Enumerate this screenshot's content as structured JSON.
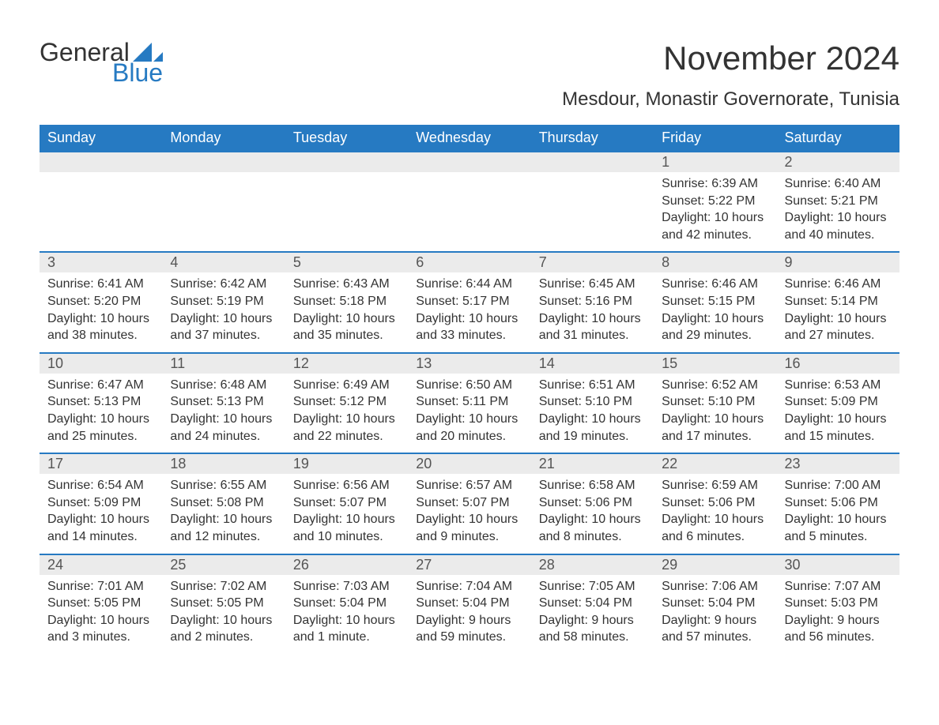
{
  "logo": {
    "word1": "General",
    "word2": "Blue",
    "accent_color": "#267ac2"
  },
  "title": "November 2024",
  "subtitle": "Mesdour, Monastir Governorate, Tunisia",
  "colors": {
    "header_bg": "#267ac2",
    "header_text": "#ffffff",
    "daynum_bg": "#ebebeb",
    "rule": "#267ac2",
    "body_text": "#333333"
  },
  "fontsize": {
    "title": 42,
    "subtitle": 24,
    "dayheader": 18,
    "daynum": 18,
    "cell": 16
  },
  "day_headers": [
    "Sunday",
    "Monday",
    "Tuesday",
    "Wednesday",
    "Thursday",
    "Friday",
    "Saturday"
  ],
  "weeks": [
    [
      null,
      null,
      null,
      null,
      null,
      {
        "n": "1",
        "sr": "Sunrise: 6:39 AM",
        "ss": "Sunset: 5:22 PM",
        "dl": "Daylight: 10 hours and 42 minutes."
      },
      {
        "n": "2",
        "sr": "Sunrise: 6:40 AM",
        "ss": "Sunset: 5:21 PM",
        "dl": "Daylight: 10 hours and 40 minutes."
      }
    ],
    [
      {
        "n": "3",
        "sr": "Sunrise: 6:41 AM",
        "ss": "Sunset: 5:20 PM",
        "dl": "Daylight: 10 hours and 38 minutes."
      },
      {
        "n": "4",
        "sr": "Sunrise: 6:42 AM",
        "ss": "Sunset: 5:19 PM",
        "dl": "Daylight: 10 hours and 37 minutes."
      },
      {
        "n": "5",
        "sr": "Sunrise: 6:43 AM",
        "ss": "Sunset: 5:18 PM",
        "dl": "Daylight: 10 hours and 35 minutes."
      },
      {
        "n": "6",
        "sr": "Sunrise: 6:44 AM",
        "ss": "Sunset: 5:17 PM",
        "dl": "Daylight: 10 hours and 33 minutes."
      },
      {
        "n": "7",
        "sr": "Sunrise: 6:45 AM",
        "ss": "Sunset: 5:16 PM",
        "dl": "Daylight: 10 hours and 31 minutes."
      },
      {
        "n": "8",
        "sr": "Sunrise: 6:46 AM",
        "ss": "Sunset: 5:15 PM",
        "dl": "Daylight: 10 hours and 29 minutes."
      },
      {
        "n": "9",
        "sr": "Sunrise: 6:46 AM",
        "ss": "Sunset: 5:14 PM",
        "dl": "Daylight: 10 hours and 27 minutes."
      }
    ],
    [
      {
        "n": "10",
        "sr": "Sunrise: 6:47 AM",
        "ss": "Sunset: 5:13 PM",
        "dl": "Daylight: 10 hours and 25 minutes."
      },
      {
        "n": "11",
        "sr": "Sunrise: 6:48 AM",
        "ss": "Sunset: 5:13 PM",
        "dl": "Daylight: 10 hours and 24 minutes."
      },
      {
        "n": "12",
        "sr": "Sunrise: 6:49 AM",
        "ss": "Sunset: 5:12 PM",
        "dl": "Daylight: 10 hours and 22 minutes."
      },
      {
        "n": "13",
        "sr": "Sunrise: 6:50 AM",
        "ss": "Sunset: 5:11 PM",
        "dl": "Daylight: 10 hours and 20 minutes."
      },
      {
        "n": "14",
        "sr": "Sunrise: 6:51 AM",
        "ss": "Sunset: 5:10 PM",
        "dl": "Daylight: 10 hours and 19 minutes."
      },
      {
        "n": "15",
        "sr": "Sunrise: 6:52 AM",
        "ss": "Sunset: 5:10 PM",
        "dl": "Daylight: 10 hours and 17 minutes."
      },
      {
        "n": "16",
        "sr": "Sunrise: 6:53 AM",
        "ss": "Sunset: 5:09 PM",
        "dl": "Daylight: 10 hours and 15 minutes."
      }
    ],
    [
      {
        "n": "17",
        "sr": "Sunrise: 6:54 AM",
        "ss": "Sunset: 5:09 PM",
        "dl": "Daylight: 10 hours and 14 minutes."
      },
      {
        "n": "18",
        "sr": "Sunrise: 6:55 AM",
        "ss": "Sunset: 5:08 PM",
        "dl": "Daylight: 10 hours and 12 minutes."
      },
      {
        "n": "19",
        "sr": "Sunrise: 6:56 AM",
        "ss": "Sunset: 5:07 PM",
        "dl": "Daylight: 10 hours and 10 minutes."
      },
      {
        "n": "20",
        "sr": "Sunrise: 6:57 AM",
        "ss": "Sunset: 5:07 PM",
        "dl": "Daylight: 10 hours and 9 minutes."
      },
      {
        "n": "21",
        "sr": "Sunrise: 6:58 AM",
        "ss": "Sunset: 5:06 PM",
        "dl": "Daylight: 10 hours and 8 minutes."
      },
      {
        "n": "22",
        "sr": "Sunrise: 6:59 AM",
        "ss": "Sunset: 5:06 PM",
        "dl": "Daylight: 10 hours and 6 minutes."
      },
      {
        "n": "23",
        "sr": "Sunrise: 7:00 AM",
        "ss": "Sunset: 5:06 PM",
        "dl": "Daylight: 10 hours and 5 minutes."
      }
    ],
    [
      {
        "n": "24",
        "sr": "Sunrise: 7:01 AM",
        "ss": "Sunset: 5:05 PM",
        "dl": "Daylight: 10 hours and 3 minutes."
      },
      {
        "n": "25",
        "sr": "Sunrise: 7:02 AM",
        "ss": "Sunset: 5:05 PM",
        "dl": "Daylight: 10 hours and 2 minutes."
      },
      {
        "n": "26",
        "sr": "Sunrise: 7:03 AM",
        "ss": "Sunset: 5:04 PM",
        "dl": "Daylight: 10 hours and 1 minute."
      },
      {
        "n": "27",
        "sr": "Sunrise: 7:04 AM",
        "ss": "Sunset: 5:04 PM",
        "dl": "Daylight: 9 hours and 59 minutes."
      },
      {
        "n": "28",
        "sr": "Sunrise: 7:05 AM",
        "ss": "Sunset: 5:04 PM",
        "dl": "Daylight: 9 hours and 58 minutes."
      },
      {
        "n": "29",
        "sr": "Sunrise: 7:06 AM",
        "ss": "Sunset: 5:04 PM",
        "dl": "Daylight: 9 hours and 57 minutes."
      },
      {
        "n": "30",
        "sr": "Sunrise: 7:07 AM",
        "ss": "Sunset: 5:03 PM",
        "dl": "Daylight: 9 hours and 56 minutes."
      }
    ]
  ]
}
